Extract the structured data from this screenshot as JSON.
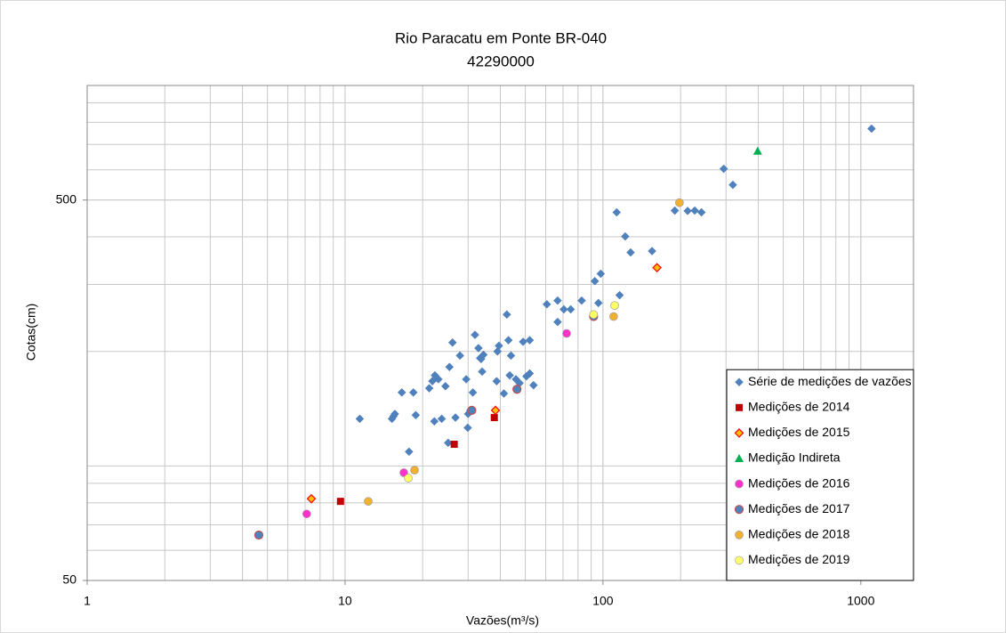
{
  "chart_data": {
    "type": "scatter",
    "title": "Rio Paracatu em Ponte BR-040",
    "subtitle": "42290000",
    "x_label": "Vazões(m³/s)",
    "y_label": "Cotas(cm)",
    "xscale": "log",
    "yscale": "log",
    "grid": true,
    "legend": "lower right",
    "xlim": [
      1,
      1600
    ],
    "xticks": [
      1,
      10,
      100,
      1000
    ],
    "ylim": [
      50,
      1000
    ],
    "yticks": [
      50,
      500
    ],
    "series": [
      {
        "name": "Série de medições de vazões",
        "color": "#4f81bd",
        "marker": "diamond",
        "x": [
          1100,
          294,
          319,
          190,
          213,
          227,
          241,
          113,
          122,
          128,
          155,
          98,
          93,
          96,
          116,
          60.6,
          82.7,
          66.7,
          70.5,
          75,
          66.7,
          42.4,
          43,
          49,
          52,
          31.9,
          32.9,
          39.5,
          39,
          44,
          26.1,
          27.9,
          33.7,
          34.4,
          33.4,
          25.4,
          22.3,
          34,
          38.7,
          43.5,
          46,
          47.5,
          50.5,
          52,
          53.8,
          21.8,
          23,
          21.2,
          24.5,
          31.3,
          41.3,
          16.6,
          18.4,
          15.4,
          15.2,
          15.6,
          11.4,
          18.8,
          22.2,
          23.7,
          26.8,
          30,
          30.6,
          29.9,
          25.1,
          17.7,
          29.5
        ],
        "values": [
          770,
          604,
          548,
          469,
          468,
          469,
          464,
          464,
          401,
          364,
          367,
          320,
          306,
          268,
          281,
          266,
          272,
          272,
          258,
          258,
          239,
          250,
          214,
          212,
          214,
          221,
          204,
          207,
          200,
          195,
          211,
          195,
          191,
          196,
          192,
          182,
          173,
          177,
          167,
          173,
          169,
          165,
          172,
          175,
          163,
          167,
          169,
          160,
          162,
          156,
          155,
          156,
          156,
          135,
          133,
          137,
          133,
          136,
          131,
          133,
          134,
          137,
          140,
          126,
          115,
          109,
          169
        ]
      },
      {
        "name": "Medições de 2014",
        "color": "#c00000",
        "marker": "square",
        "x": [
          9.6,
          26.5,
          37.9
        ],
        "values": [
          80.7,
          114,
          134
        ]
      },
      {
        "name": "Medições de 2015",
        "color": "#ffc000",
        "marker": "diamond-outline",
        "x": [
          7.4,
          38.3,
          162
        ],
        "values": [
          82,
          140,
          332
        ]
      },
      {
        "name": "Medição Indireta",
        "color": "#00b050",
        "marker": "triangle",
        "x": [
          398
        ],
        "values": [
          672
        ]
      },
      {
        "name": "Medições de 2016",
        "color": "#ff33cc",
        "marker": "circle",
        "x": [
          7.1,
          16.9,
          72.3
        ],
        "values": [
          74.8,
          96,
          223
        ]
      },
      {
        "name": "Medições de 2017",
        "color": "#4f81bd",
        "marker": "circle-outline",
        "x": [
          4.63,
          31,
          46.4,
          92
        ],
        "values": [
          65.8,
          140,
          159,
          247
        ]
      },
      {
        "name": "Medições de 2018",
        "color": "#f0b030",
        "marker": "circle",
        "x": [
          12.3,
          18.6,
          198,
          110
        ],
        "values": [
          80.7,
          97.5,
          492,
          247
        ]
      },
      {
        "name": "Medições de 2019",
        "color": "#ffff66",
        "marker": "circle",
        "x": [
          17.6,
          92,
          111
        ],
        "values": [
          92.9,
          250,
          264
        ]
      }
    ]
  }
}
